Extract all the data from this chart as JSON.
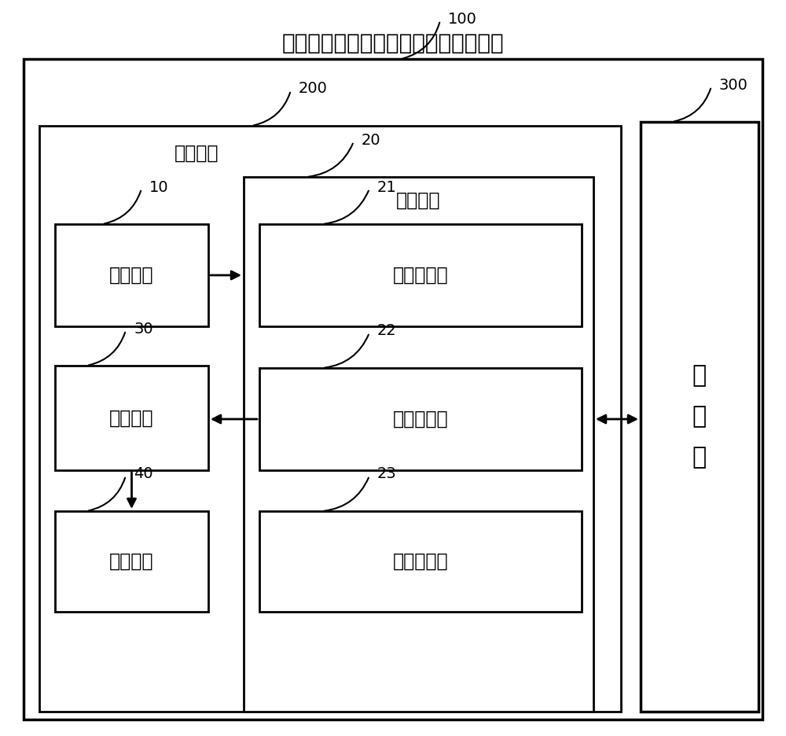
{
  "title": "基于通信终端与电视机多屏互动的系统",
  "title_fontsize": 20,
  "background_color": "#ffffff",
  "label_100": "100",
  "label_200": "200",
  "label_300": "300",
  "label_10": "10",
  "label_20": "20",
  "label_21": "21",
  "label_22": "22",
  "label_23": "23",
  "label_30": "30",
  "label_40": "40",
  "comm_terminal_label": "通信终端",
  "filter_module_label": "筛选模块",
  "box_10_label": "切换模块",
  "box_21_label": "检测子模块",
  "box_22_label": "解析子模块",
  "box_23_label": "发送子模块",
  "box_30_label": "显示模块",
  "box_40_label": "触发模块",
  "box_300_label": "电\n视\n机",
  "text_color": "#000000",
  "module_fontsize": 17,
  "label_fontsize": 14,
  "sublabel_fontsize": 16
}
